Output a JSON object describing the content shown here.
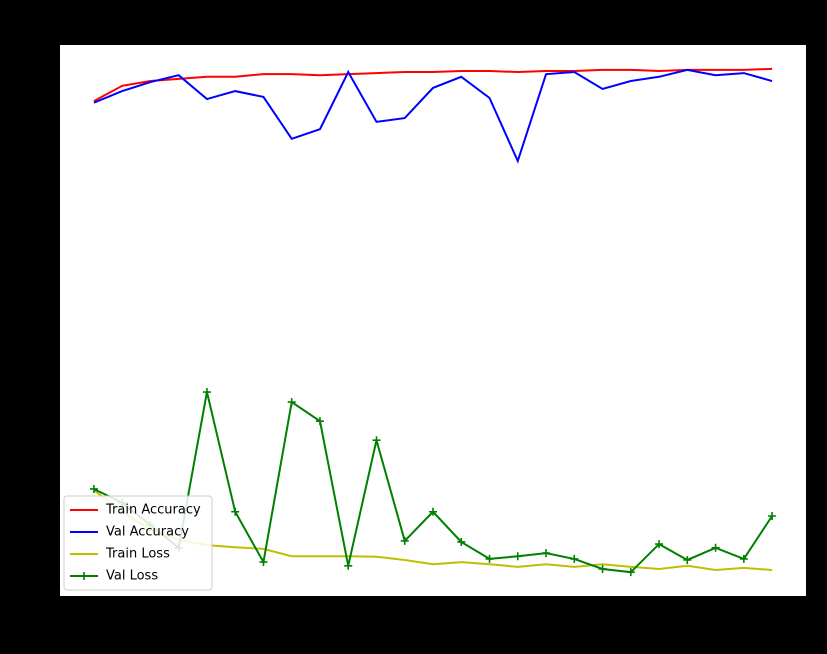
{
  "chart_data": {
    "type": "line",
    "x": [
      0,
      1,
      2,
      3,
      4,
      5,
      6,
      7,
      8,
      9,
      10,
      11,
      12,
      13,
      14,
      15,
      16,
      17,
      18,
      19,
      20,
      21,
      22,
      23,
      24
    ],
    "xlim": [
      -1.2,
      25.2
    ],
    "ylim": [
      -0.02,
      1.02
    ],
    "legend": "lower left",
    "series": [
      {
        "name": "Train Accuracy",
        "color": "#ff0000",
        "marker": "none",
        "values": [
          0.914,
          0.943,
          0.952,
          0.956,
          0.96,
          0.96,
          0.965,
          0.965,
          0.963,
          0.965,
          0.967,
          0.969,
          0.969,
          0.971,
          0.971,
          0.969,
          0.971,
          0.971,
          0.973,
          0.973,
          0.971,
          0.973,
          0.973,
          0.973,
          0.975
        ]
      },
      {
        "name": "Val Accuracy",
        "color": "#0000ff",
        "marker": "none",
        "values": [
          0.911,
          0.933,
          0.95,
          0.963,
          0.918,
          0.933,
          0.922,
          0.843,
          0.861,
          0.969,
          0.875,
          0.882,
          0.939,
          0.96,
          0.92,
          0.801,
          0.965,
          0.969,
          0.937,
          0.952,
          0.96,
          0.973,
          0.963,
          0.967,
          0.952
        ]
      },
      {
        "name": "Train Loss",
        "color": "#bfbf00",
        "marker": "none",
        "values": [
          0.18,
          0.139,
          0.105,
          0.086,
          0.076,
          0.072,
          0.069,
          0.055,
          0.055,
          0.055,
          0.054,
          0.048,
          0.04,
          0.044,
          0.04,
          0.035,
          0.04,
          0.035,
          0.04,
          0.035,
          0.031,
          0.037,
          0.029,
          0.033,
          0.029
        ]
      },
      {
        "name": "Val Loss",
        "color": "#008000",
        "marker": "plus",
        "values": [
          0.182,
          0.156,
          0.114,
          0.071,
          0.365,
          0.139,
          0.044,
          0.346,
          0.31,
          0.037,
          0.274,
          0.084,
          0.139,
          0.082,
          0.05,
          0.055,
          0.061,
          0.05,
          0.031,
          0.025,
          0.078,
          0.048,
          0.071,
          0.05,
          0.131
        ]
      }
    ]
  }
}
